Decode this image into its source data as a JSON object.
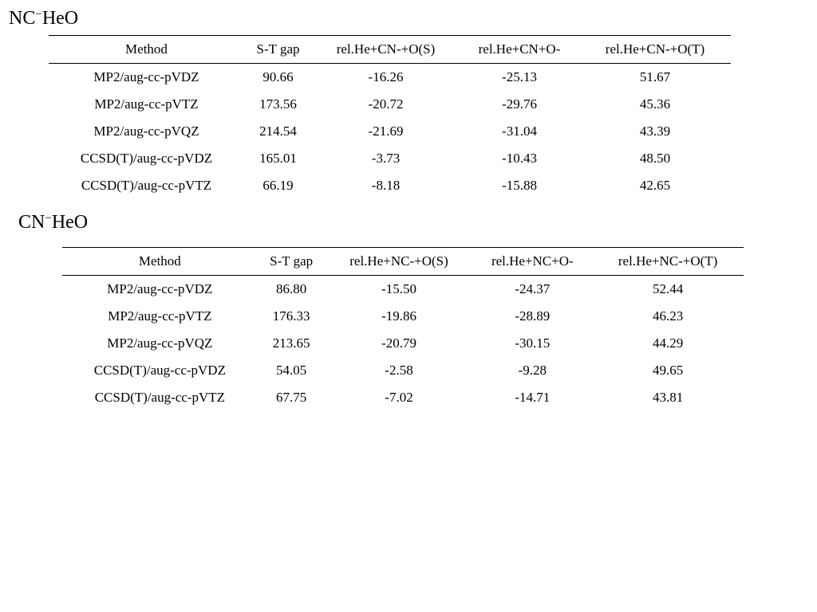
{
  "tables": [
    {
      "title_base": "NC",
      "title_sup": "−",
      "title_rest": "HeO",
      "headers": [
        "Method",
        "S-T gap",
        "rel.He+CN-+O(S)",
        "rel.He+CN+O-",
        "rel.He+CN-+O(T)"
      ],
      "rows": [
        [
          "MP2/aug-cc-pVDZ",
          "90.66",
          "-16.26",
          "-25.13",
          "51.67"
        ],
        [
          "MP2/aug-cc-pVTZ",
          "173.56",
          "-20.72",
          "-29.76",
          "45.36"
        ],
        [
          "MP2/aug-cc-pVQZ",
          "214.54",
          "-21.69",
          "-31.04",
          "43.39"
        ],
        [
          "CCSD(T)/aug-cc-pVDZ",
          "165.01",
          "-3.73",
          "-10.43",
          "48.50"
        ],
        [
          "CCSD(T)/aug-cc-pVTZ",
          "66.19",
          "-8.18",
          "-15.88",
          "42.65"
        ]
      ]
    },
    {
      "title_base": "CN",
      "title_sup": "−",
      "title_rest": "HeO",
      "headers": [
        "Method",
        "S-T gap",
        "rel.He+NC-+O(S)",
        "rel.He+NC+O-",
        "rel.He+NC-+O(T)"
      ],
      "rows": [
        [
          "MP2/aug-cc-pVDZ",
          "86.80",
          "-15.50",
          "-24.37",
          "52.44"
        ],
        [
          "MP2/aug-cc-pVTZ",
          "176.33",
          "-19.86",
          "-28.89",
          "46.23"
        ],
        [
          "MP2/aug-cc-pVQZ",
          "213.65",
          "-20.79",
          "-30.15",
          "44.29"
        ],
        [
          "CCSD(T)/aug-cc-pVDZ",
          "54.05",
          "-2.58",
          "-9.28",
          "49.65"
        ],
        [
          "CCSD(T)/aug-cc-pVTZ",
          "67.75",
          "-7.02",
          "-14.71",
          "43.81"
        ]
      ]
    }
  ]
}
